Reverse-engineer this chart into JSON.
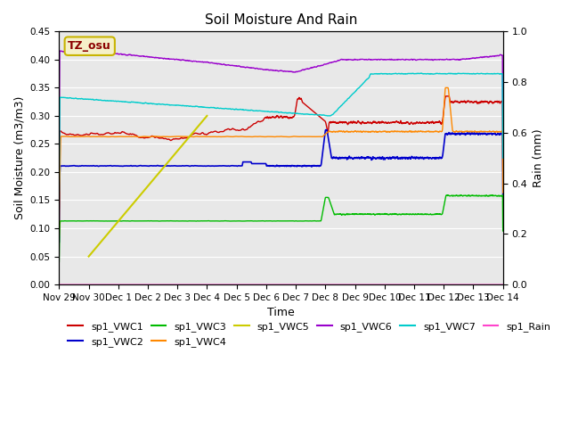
{
  "title": "Soil Moisture And Rain",
  "xlabel": "Time",
  "ylabel_left": "Soil Moisture (m3/m3)",
  "ylabel_right": "Rain (mm)",
  "ylim_left": [
    0.0,
    0.45
  ],
  "ylim_right": [
    0.0,
    1.0
  ],
  "bg_color": "#e8e8e8",
  "annotation_text": "TZ_osu",
  "annotation_bg": "#f5f0c8",
  "annotation_border": "#c8b400",
  "xtick_labels": [
    "Nov 29",
    "Nov 30",
    "Dec 1",
    "Dec 2",
    "Dec 3",
    "Dec 4",
    "Dec 5",
    "Dec 6",
    "Dec 7",
    "Dec 8",
    "Dec 9",
    "Dec 10",
    "Dec 11",
    "Dec 12",
    "Dec 13",
    "Dec 14"
  ],
  "xtick_positions": [
    0,
    1,
    2,
    3,
    4,
    5,
    6,
    7,
    8,
    9,
    10,
    11,
    12,
    13,
    14,
    15
  ],
  "colors": {
    "vwc1": "#cc0000",
    "vwc2": "#0000cc",
    "vwc3": "#00bb00",
    "vwc4": "#ff8800",
    "vwc5": "#cccc00",
    "vwc6": "#9900cc",
    "vwc7": "#00cccc",
    "rain": "#ff44cc"
  }
}
